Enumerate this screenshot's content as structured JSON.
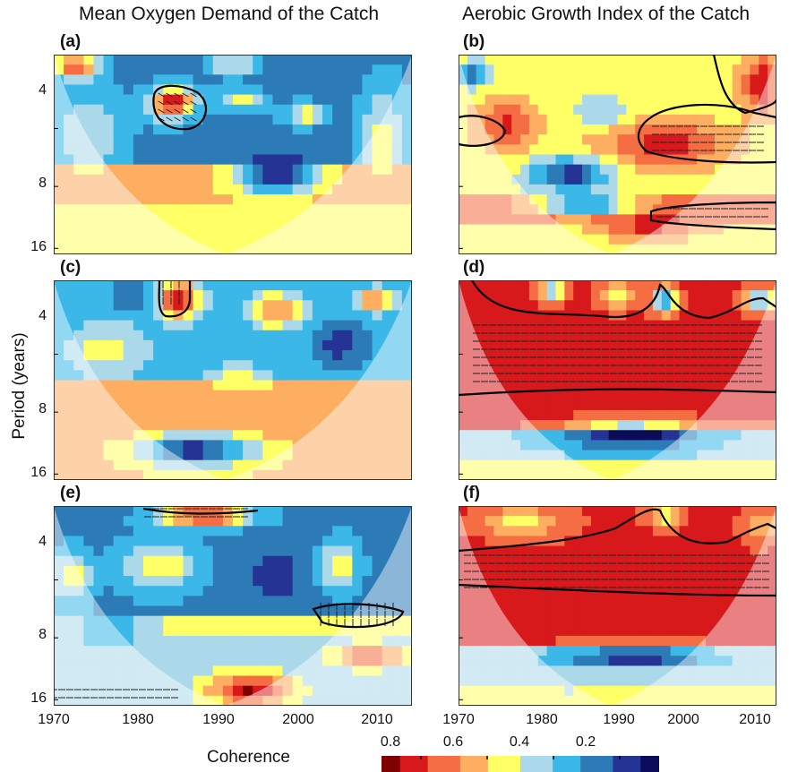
{
  "titles": {
    "left": "Mean Oxygen Demand of the Catch",
    "right": "Aerobic Growth Index of the Catch"
  },
  "ylabel": "Period (years)",
  "colorbar": {
    "title": "Coherence",
    "ticks": [
      "0.8",
      "0.6",
      "0.4",
      "0.2"
    ],
    "colors": [
      "#7f0000",
      "#d7191c",
      "#f46d43",
      "#fdae61",
      "#ffff66",
      "#abd9e9",
      "#3bb8e8",
      "#2c7bb6",
      "#253494",
      "#0b0b5a"
    ]
  },
  "chart_data": {
    "type": "heatmap",
    "description_grid": "wavelet coherence panels",
    "x_ticks": [
      "1970",
      "1980",
      "1990",
      "2000",
      "2010"
    ],
    "y_ticks": [
      "4",
      "8",
      "16"
    ],
    "x_range": [
      1970,
      2016
    ],
    "y_range_period_years": [
      1,
      16
    ],
    "y_scale": "log2",
    "panels": [
      {
        "label": "(a)",
        "column": "left",
        "row": 1
      },
      {
        "label": "(b)",
        "column": "right",
        "row": 1
      },
      {
        "label": "(c)",
        "column": "left",
        "row": 2
      },
      {
        "label": "(d)",
        "column": "right",
        "row": 2
      },
      {
        "label": "(e)",
        "column": "left",
        "row": 3
      },
      {
        "label": "(f)",
        "column": "right",
        "row": 3
      }
    ]
  }
}
